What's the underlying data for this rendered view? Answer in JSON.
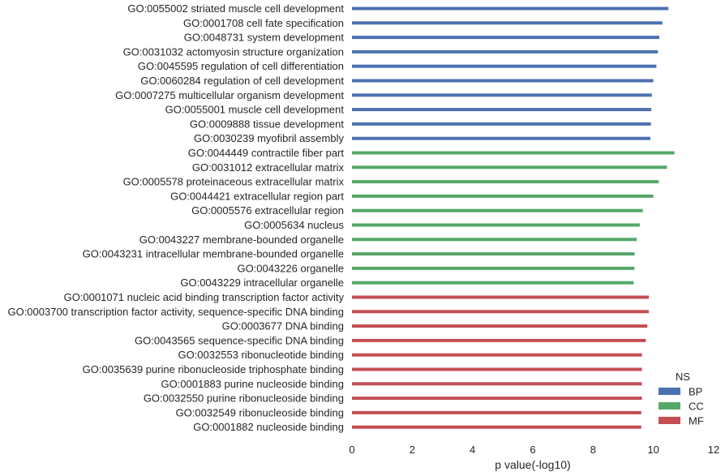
{
  "chart_data": {
    "type": "bar",
    "orientation": "horizontal",
    "xlabel": "p value(-log10)",
    "xlim": [
      0,
      12
    ],
    "xticks": [
      "0",
      "2",
      "4",
      "6",
      "8",
      "10",
      "12"
    ],
    "grid": false,
    "legend": {
      "title": "NS",
      "placement": "bottom-right",
      "entries": [
        {
          "name": "BP",
          "color": "#4C72B0"
        },
        {
          "name": "CC",
          "color": "#55A868"
        },
        {
          "name": "MF",
          "color": "#C44E52"
        }
      ]
    },
    "categories": [
      {
        "label": "GO:0055002 striated muscle cell development",
        "value": 10.5,
        "ns": "BP"
      },
      {
        "label": "GO:0001708 cell fate specification",
        "value": 10.3,
        "ns": "BP"
      },
      {
        "label": "GO:0048731 system development",
        "value": 10.2,
        "ns": "BP"
      },
      {
        "label": "GO:0031032 actomyosin structure organization",
        "value": 10.15,
        "ns": "BP"
      },
      {
        "label": "GO:0045595 regulation of cell differentiation",
        "value": 10.1,
        "ns": "BP"
      },
      {
        "label": "GO:0060284 regulation of cell development",
        "value": 10.0,
        "ns": "BP"
      },
      {
        "label": "GO:0007275 multicellular organism development",
        "value": 9.95,
        "ns": "BP"
      },
      {
        "label": "GO:0055001 muscle cell development",
        "value": 9.93,
        "ns": "BP"
      },
      {
        "label": "GO:0009888 tissue development",
        "value": 9.92,
        "ns": "BP"
      },
      {
        "label": "GO:0030239 myofibril assembly",
        "value": 9.9,
        "ns": "BP"
      },
      {
        "label": "GO:0044449 contractile fiber part",
        "value": 10.7,
        "ns": "CC"
      },
      {
        "label": "GO:0031012 extracellular matrix",
        "value": 10.45,
        "ns": "CC"
      },
      {
        "label": "GO:0005578 proteinaceous extracellular matrix",
        "value": 10.18,
        "ns": "CC"
      },
      {
        "label": "GO:0044421 extracellular region part",
        "value": 10.0,
        "ns": "CC"
      },
      {
        "label": "GO:0005576 extracellular region",
        "value": 9.65,
        "ns": "CC"
      },
      {
        "label": "GO:0005634 nucleus",
        "value": 9.55,
        "ns": "CC"
      },
      {
        "label": "GO:0043227 membrane-bounded organelle",
        "value": 9.45,
        "ns": "CC"
      },
      {
        "label": "GO:0043231 intracellular membrane-bounded organelle",
        "value": 9.38,
        "ns": "CC"
      },
      {
        "label": "GO:0043226 organelle",
        "value": 9.37,
        "ns": "CC"
      },
      {
        "label": "GO:0043229 intracellular organelle",
        "value": 9.35,
        "ns": "CC"
      },
      {
        "label": "GO:0001071 nucleic acid binding transcription factor activity",
        "value": 9.85,
        "ns": "MF"
      },
      {
        "label": "GO:0003700 transcription factor activity, sequence-specific DNA binding",
        "value": 9.85,
        "ns": "MF"
      },
      {
        "label": "GO:0003677 DNA binding",
        "value": 9.8,
        "ns": "MF"
      },
      {
        "label": "GO:0043565 sequence-specific DNA binding",
        "value": 9.75,
        "ns": "MF"
      },
      {
        "label": "GO:0032553 ribonucleotide binding",
        "value": 9.62,
        "ns": "MF"
      },
      {
        "label": "GO:0035639 purine ribonucleoside triphosphate binding",
        "value": 9.62,
        "ns": "MF"
      },
      {
        "label": "GO:0001883 purine nucleoside binding",
        "value": 9.62,
        "ns": "MF"
      },
      {
        "label": "GO:0032550 purine ribonucleoside binding",
        "value": 9.62,
        "ns": "MF"
      },
      {
        "label": "GO:0032549 ribonucleoside binding",
        "value": 9.6,
        "ns": "MF"
      },
      {
        "label": "GO:0001882 nucleoside binding",
        "value": 9.6,
        "ns": "MF"
      }
    ]
  }
}
